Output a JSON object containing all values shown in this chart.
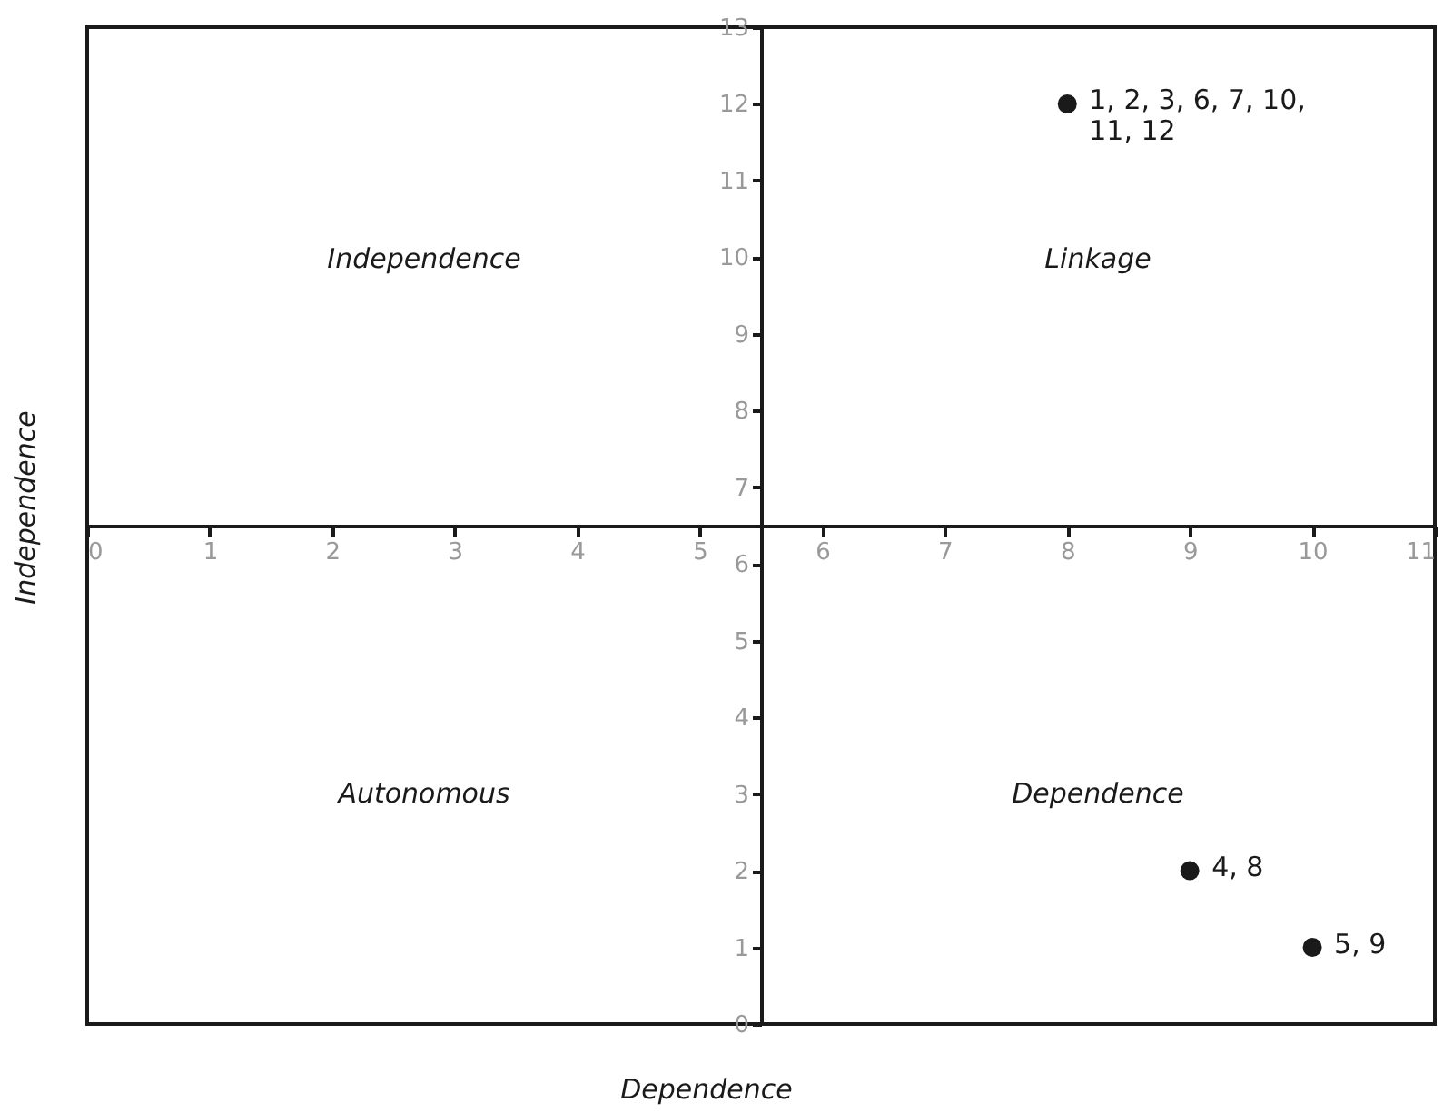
{
  "chart_data": {
    "type": "scatter",
    "xlabel": "Dependence",
    "ylabel": "Independence",
    "x": [
      8,
      9,
      10
    ],
    "values": [
      12,
      2,
      1
    ],
    "color": "#1a1a1a",
    "marker": "circle",
    "value_labels": [
      "1, 2, 3, 6, 7, 10,\n11, 12",
      "4, 8",
      "5, 9"
    ],
    "xlim": [
      0,
      11
    ],
    "xticks": [
      0,
      1,
      2,
      3,
      4,
      5,
      6,
      7,
      8,
      9,
      10,
      11
    ],
    "ylim": [
      0,
      13
    ],
    "yticks": [
      0,
      1,
      2,
      3,
      4,
      5,
      6,
      7,
      8,
      9,
      10,
      11,
      12,
      13
    ],
    "annotations": [
      "Independence",
      "Linkage",
      "Autonomous",
      "Dependence"
    ],
    "grid": false
  }
}
